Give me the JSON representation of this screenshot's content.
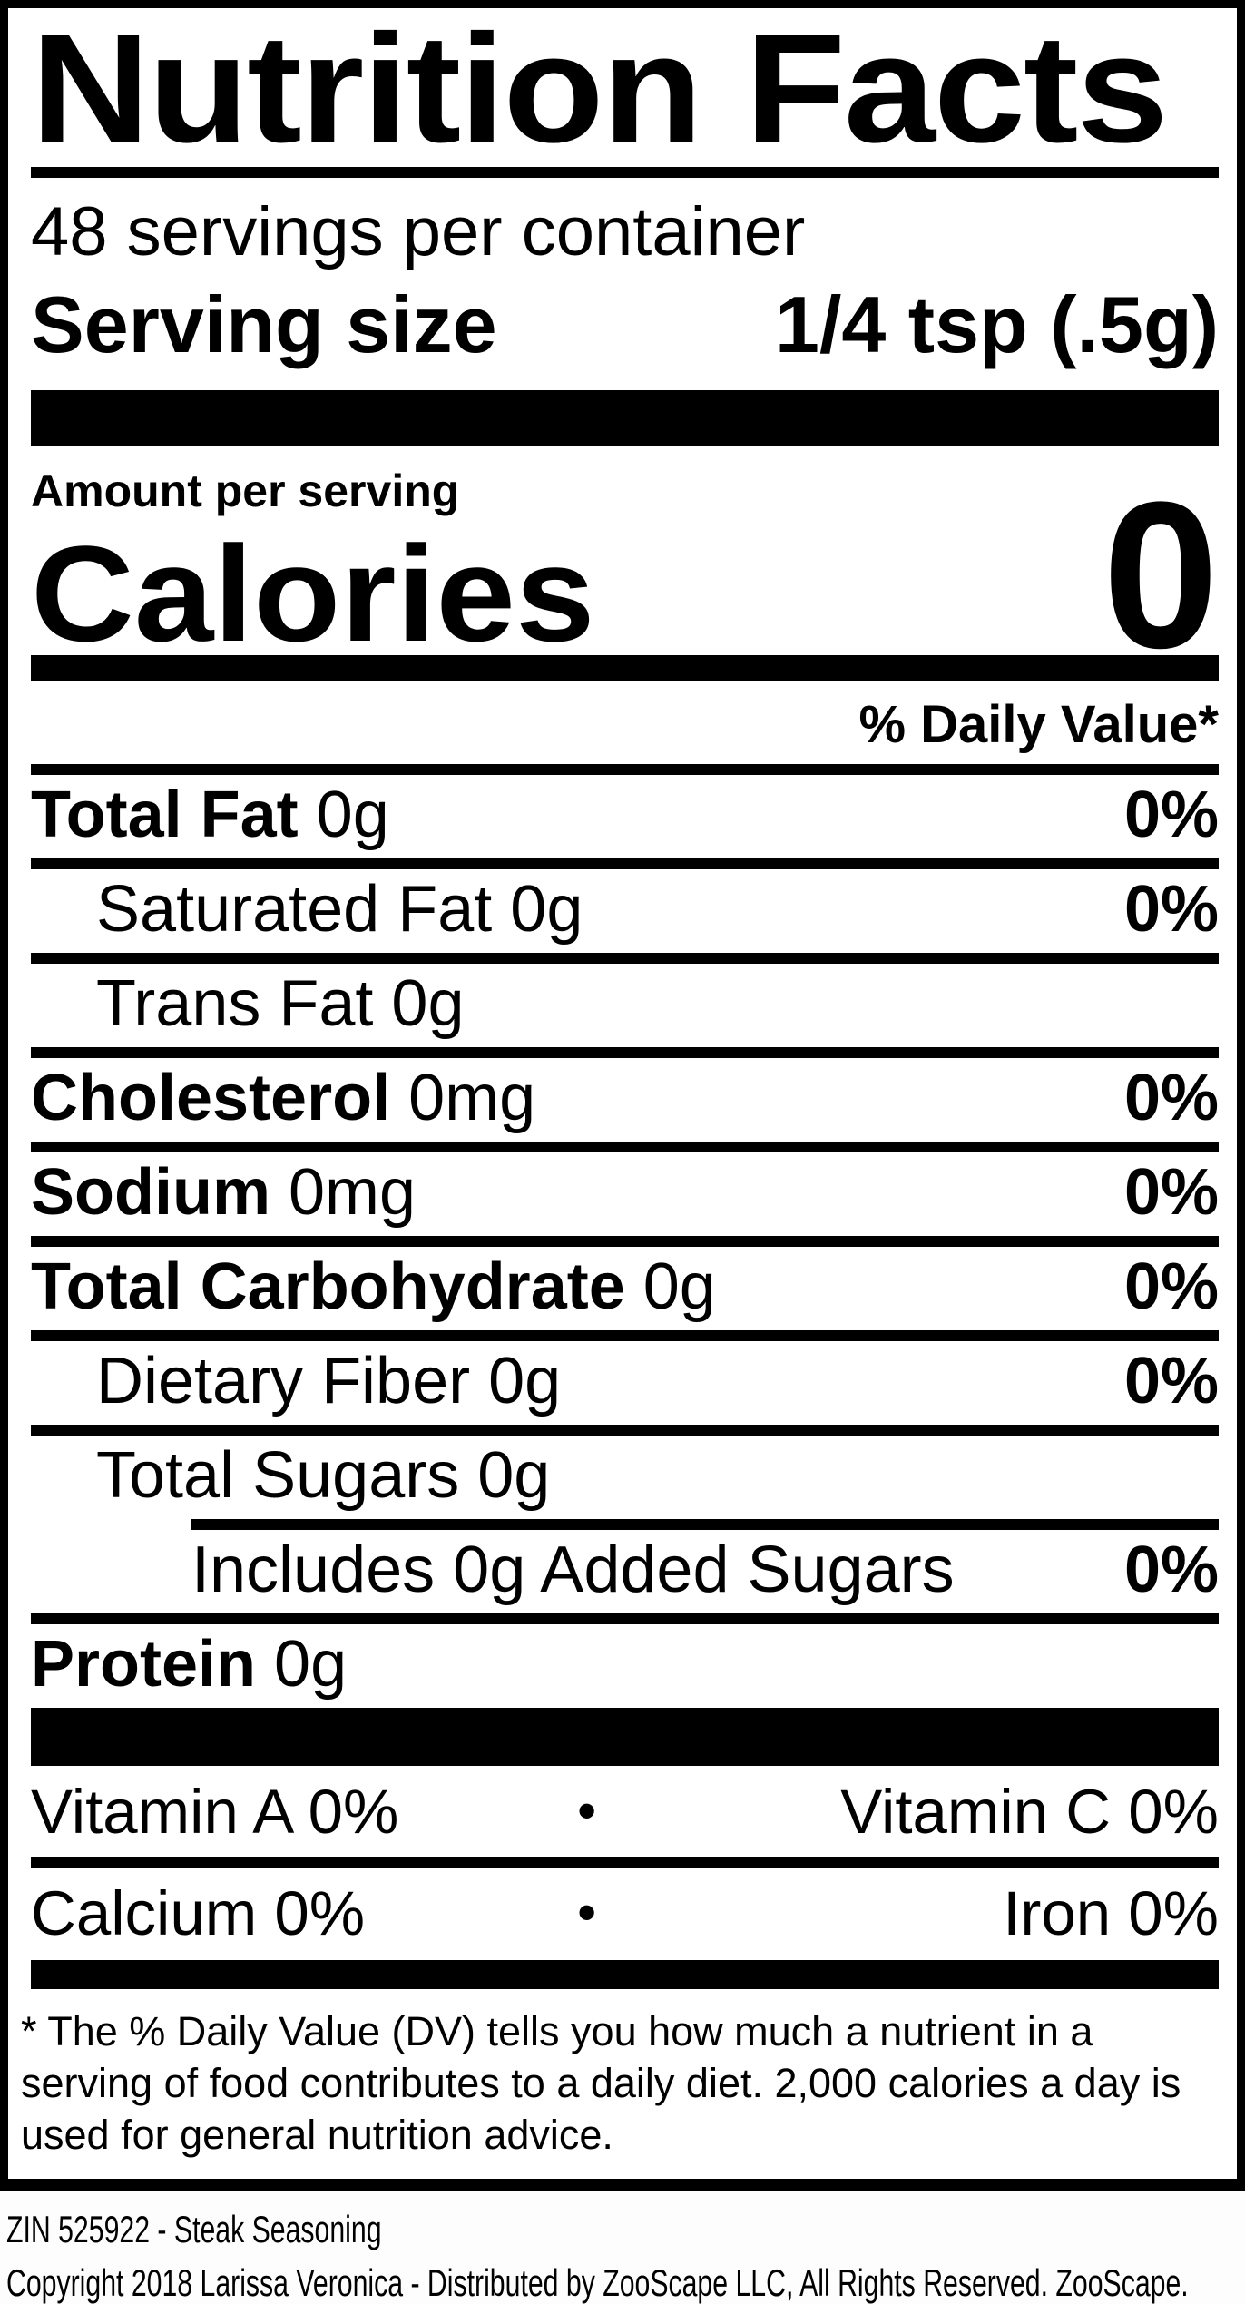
{
  "colors": {
    "ink": "#000000",
    "paper": "#ffffff"
  },
  "label": {
    "title": "Nutrition Facts",
    "servings_per_container": "48 servings per container",
    "serving_size_label": "Serving size",
    "serving_size_value": "1/4 tsp (.5g)",
    "amount_per_serving": "Amount per serving",
    "calories_label": "Calories",
    "calories_value": "0",
    "daily_value_header": "% Daily Value*",
    "rows": [
      {
        "name": "Total Fat",
        "bold": true,
        "amount": "0g",
        "dv": "0%",
        "indent": 0
      },
      {
        "name": "Saturated Fat",
        "bold": false,
        "amount": "0g",
        "dv": "0%",
        "indent": 1
      },
      {
        "name": "Trans Fat",
        "bold": false,
        "amount": "0g",
        "dv": "",
        "indent": 1
      },
      {
        "name": "Cholesterol",
        "bold": true,
        "amount": "0mg",
        "dv": "0%",
        "indent": 0
      },
      {
        "name": "Sodium",
        "bold": true,
        "amount": "0mg",
        "dv": "0%",
        "indent": 0
      },
      {
        "name": "Total Carbohydrate",
        "bold": true,
        "amount": "0g",
        "dv": "0%",
        "indent": 0
      },
      {
        "name": "Dietary Fiber",
        "bold": false,
        "amount": "0g",
        "dv": "0%",
        "indent": 1
      },
      {
        "name": "Total Sugars",
        "bold": false,
        "amount": "0g",
        "dv": "",
        "indent": 1
      },
      {
        "name": "Includes 0g Added Sugars",
        "bold": false,
        "amount": "",
        "dv": "0%",
        "indent": 2
      },
      {
        "name": "Protein",
        "bold": true,
        "amount": "0g",
        "dv": "",
        "indent": 0
      }
    ],
    "micronutrients": [
      {
        "left": "Vitamin A 0%",
        "bullet": "•",
        "right": "Vitamin C 0%"
      },
      {
        "left": "Calcium 0%",
        "bullet": "•",
        "right": "Iron 0%"
      }
    ],
    "footnote": "* The % Daily Value (DV) tells you how much a nutrient in a serving of food contributes to a daily diet. 2,000 calories a day is used for general nutrition advice."
  },
  "footer": {
    "line1": "ZIN 525922 - Steak Seasoning",
    "line2": "Copyright 2018 Larissa Veronica - Distributed by ZooScape LLC, All Rights Reserved. ZooScape."
  }
}
